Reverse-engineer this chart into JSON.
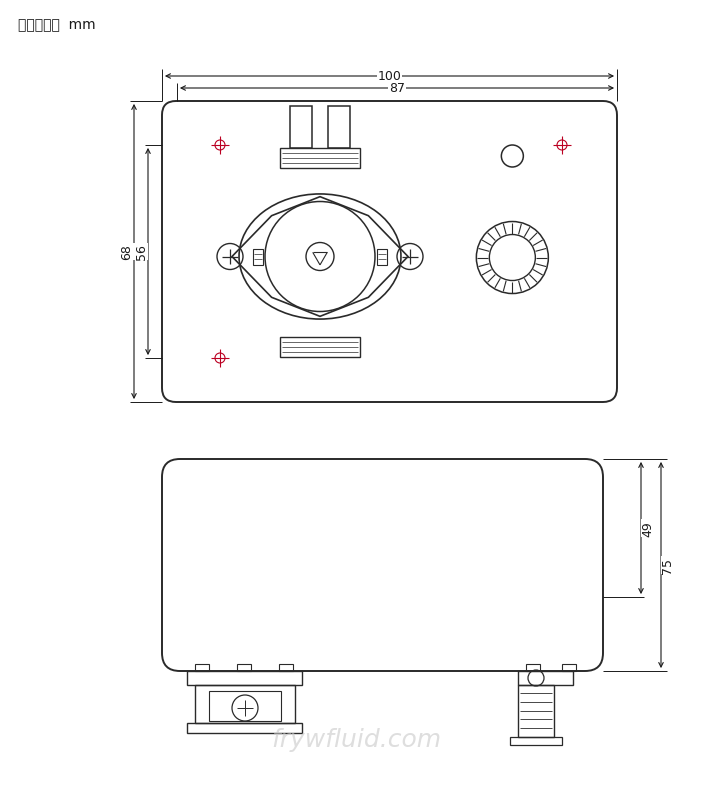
{
  "bg_color": "#ffffff",
  "line_color": "#2a2a2a",
  "dim_color": "#1a1a1a",
  "crosshair_color": "#bb0022",
  "watermark_text": "frywfluid.com",
  "unit_label": "尺寸单位：  mm"
}
